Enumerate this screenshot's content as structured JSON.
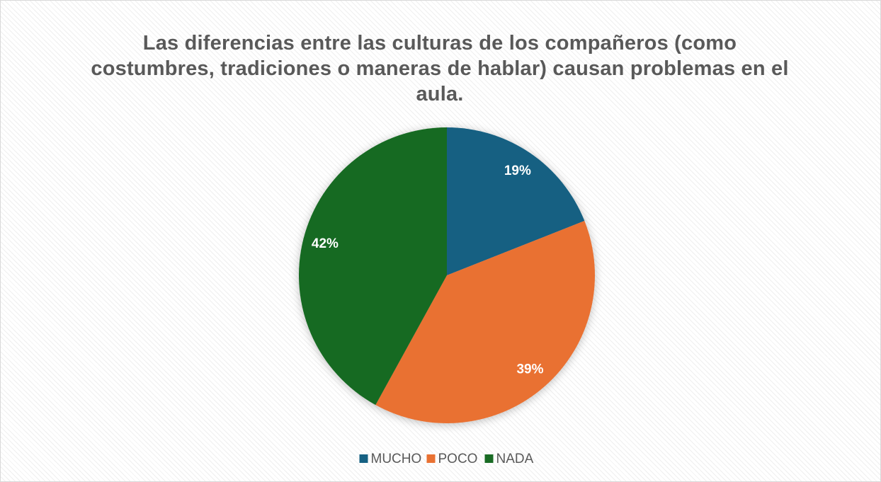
{
  "chart_data": {
    "type": "pie",
    "title": "Las diferencias entre las culturas de los compañeros (como costumbres, tradiciones o maneras de hablar) causan problemas en el aula.",
    "categories": [
      "MUCHO",
      "POCO",
      "NADA"
    ],
    "values": [
      19,
      39,
      42
    ],
    "value_labels": [
      "19%",
      "39%",
      "42%"
    ],
    "colors": [
      "#156082",
      "#e97132",
      "#196b24"
    ],
    "legend": "bottom"
  }
}
